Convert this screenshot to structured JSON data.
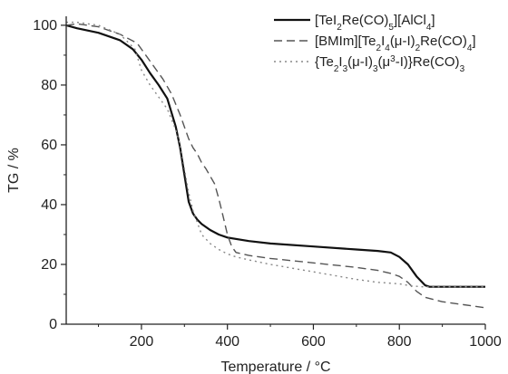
{
  "chart_data": {
    "type": "line",
    "xlabel": "Temperature / °C",
    "ylabel": "TG / %",
    "xlim": [
      25,
      1000
    ],
    "ylim": [
      0,
      103
    ],
    "x_ticks": [
      200,
      400,
      600,
      800,
      1000
    ],
    "y_ticks": [
      0,
      20,
      40,
      60,
      80,
      100
    ],
    "grid": false,
    "legend_position": "top-right",
    "series": [
      {
        "name": "[TeI2Re(CO)5][AlCl4]",
        "style": "solid",
        "color": "#111111",
        "x": [
          25,
          50,
          100,
          150,
          180,
          200,
          220,
          240,
          260,
          280,
          290,
          300,
          310,
          320,
          330,
          340,
          360,
          380,
          400,
          450,
          500,
          600,
          700,
          750,
          780,
          800,
          820,
          840,
          860,
          870,
          900,
          950,
          1000
        ],
        "y": [
          100,
          99,
          97.5,
          95,
          92,
          88.5,
          84,
          80,
          75.5,
          66,
          59,
          50,
          41,
          37,
          35,
          33.5,
          31.5,
          30,
          29,
          27.8,
          27,
          26,
          25,
          24.5,
          24,
          22.5,
          20,
          16,
          13,
          12.5,
          12.5,
          12.5,
          12.5
        ]
      },
      {
        "name": "[BMIm][Te2I4(μ-I)2Re(CO)4]",
        "style": "dashed",
        "color": "#555555",
        "x": [
          25,
          50,
          100,
          150,
          190,
          220,
          250,
          270,
          290,
          300,
          310,
          320,
          330,
          340,
          350,
          370,
          380,
          390,
          400,
          410,
          420,
          450,
          500,
          600,
          700,
          750,
          780,
          800,
          820,
          840,
          860,
          900,
          950,
          1000
        ],
        "y": [
          100,
          100.5,
          99.5,
          97,
          94,
          88,
          82,
          77,
          70,
          66,
          62,
          59,
          57,
          54,
          52,
          47,
          42,
          36,
          30,
          26,
          24,
          23,
          22,
          20.5,
          19,
          18,
          17,
          16,
          14,
          11,
          9,
          7.5,
          6.5,
          5.5
        ]
      },
      {
        "name": "{Te2I3(μ-I)3(μ3-I)}Re(CO)3",
        "style": "dotted",
        "color": "#888888",
        "x": [
          25,
          50,
          100,
          150,
          185,
          200,
          220,
          240,
          260,
          280,
          290,
          300,
          310,
          320,
          340,
          360,
          380,
          400,
          420,
          450,
          500,
          600,
          700,
          750,
          800,
          820,
          850,
          900,
          950,
          1000
        ],
        "y": [
          101,
          101,
          100,
          97,
          92,
          85,
          80,
          76,
          72,
          65,
          60,
          52,
          44,
          38,
          30,
          27,
          25,
          23.5,
          22.5,
          21.5,
          20,
          17.5,
          15,
          14,
          13.5,
          13,
          12.5,
          12.5,
          12.5,
          12.5
        ]
      }
    ]
  }
}
